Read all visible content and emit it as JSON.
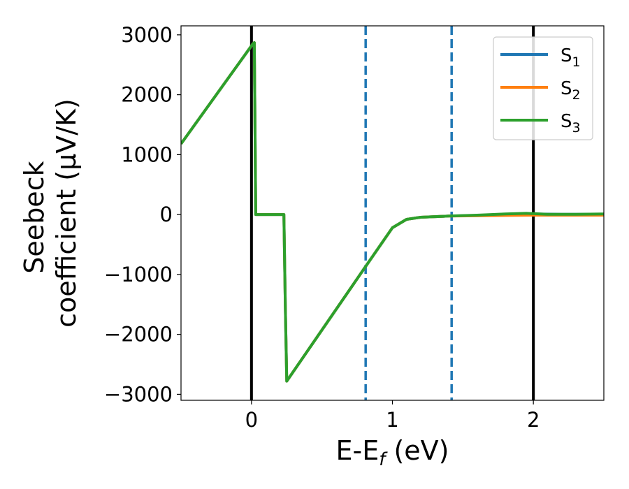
{
  "chart_data": {
    "type": "line",
    "xlabel": {
      "main": "E-E",
      "sub": "f",
      "unit": " (eV)"
    },
    "ylabel": {
      "line1": "Seebeck",
      "line2": "coefficient  (μV/K)"
    },
    "xlim": [
      -0.5,
      2.5
    ],
    "ylim": [
      -3100,
      3150
    ],
    "xticks": [
      0,
      1,
      2
    ],
    "xtick_labels": [
      "0",
      "1",
      "2"
    ],
    "yticks": [
      3000,
      2000,
      1000,
      0,
      -1000,
      -2000,
      -3000
    ],
    "ytick_labels": [
      "3000",
      "2000",
      "1000",
      "0",
      "−1000",
      "−2000",
      "−3000"
    ],
    "grid": false,
    "legend_position": "top-right",
    "vertical_lines": [
      {
        "x": 0,
        "style": "solid",
        "color": "#000000"
      },
      {
        "x": 2,
        "style": "solid",
        "color": "#000000"
      },
      {
        "x": 0.81,
        "style": "dashed",
        "color": "#1f77b4"
      },
      {
        "x": 1.42,
        "style": "dashed",
        "color": "#1f77b4"
      }
    ],
    "series": [
      {
        "name": "S",
        "sub": "1",
        "color": "#1f77b4",
        "x": [
          -0.5,
          0.01,
          0.02,
          0.03,
          0.23,
          0.24,
          0.25,
          0.8,
          1.0,
          1.1,
          1.2,
          1.4,
          1.6,
          1.8,
          2.0,
          2.2,
          2.5
        ],
        "y": [
          1180,
          2850,
          2870,
          0,
          0,
          -1500,
          -2780,
          -900,
          -220,
          -80,
          -45,
          -25,
          -15,
          0,
          10,
          5,
          5
        ]
      },
      {
        "name": "S",
        "sub": "2",
        "color": "#ff7f0e",
        "x": [
          -0.5,
          0.01,
          0.02,
          0.03,
          0.23,
          0.24,
          0.25,
          0.8,
          1.0,
          1.1,
          1.2,
          1.4,
          1.6,
          1.8,
          2.0,
          2.2,
          2.5
        ],
        "y": [
          1180,
          2850,
          2870,
          0,
          0,
          -1500,
          -2780,
          -900,
          -220,
          -80,
          -45,
          -25,
          -20,
          -15,
          -10,
          -10,
          -10
        ]
      },
      {
        "name": "S",
        "sub": "3",
        "color": "#2ca02c",
        "x": [
          -0.5,
          0.01,
          0.02,
          0.03,
          0.23,
          0.24,
          0.25,
          0.8,
          1.0,
          1.1,
          1.2,
          1.4,
          1.6,
          1.8,
          1.95,
          2.1,
          2.3,
          2.5
        ],
        "y": [
          1180,
          2850,
          2870,
          0,
          0,
          -1500,
          -2780,
          -900,
          -220,
          -80,
          -45,
          -25,
          -10,
          10,
          20,
          5,
          5,
          10
        ]
      }
    ]
  }
}
